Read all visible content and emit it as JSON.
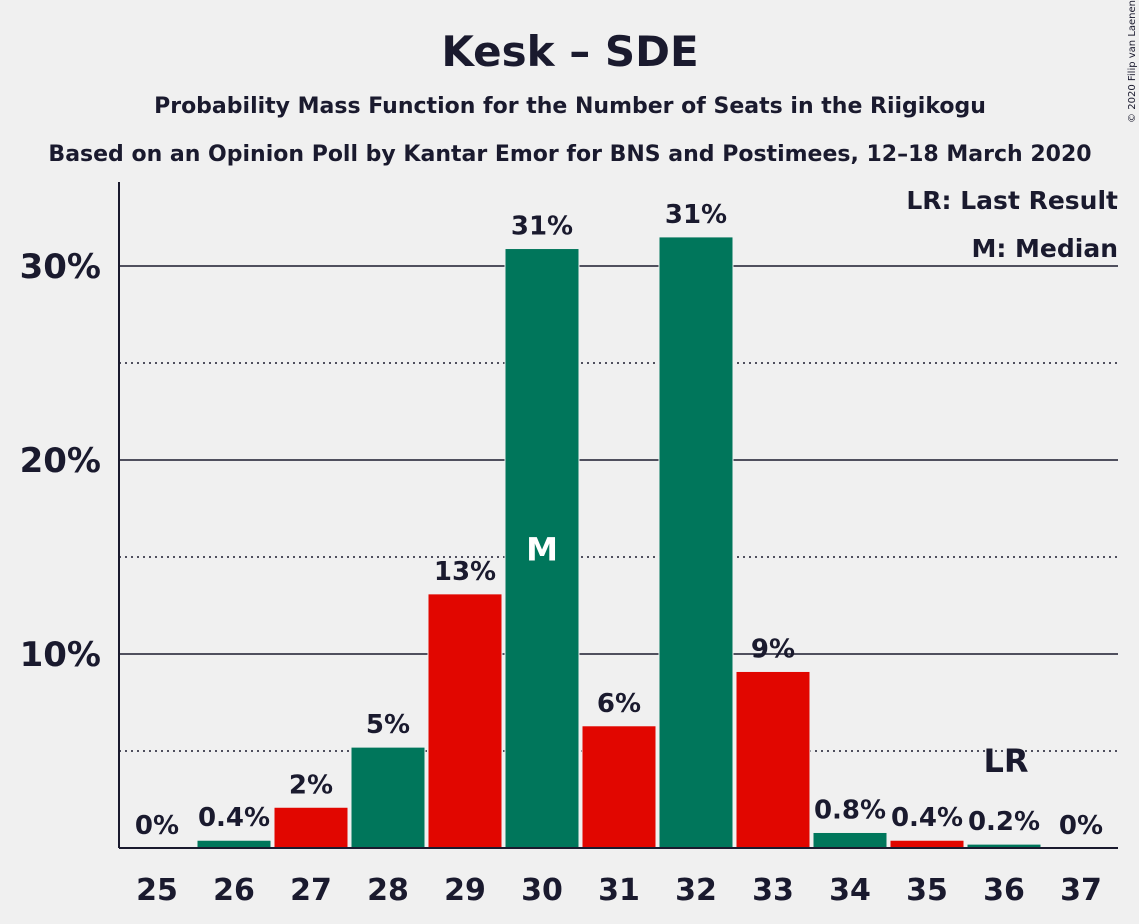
{
  "chart_data": {
    "type": "bar",
    "title": "Kesk – SDE",
    "subtitle": "Probability Mass Function for the Number of Seats in the Riigikogu",
    "subtitle2": "Based on an Opinion Poll by Kantar Emor for BNS and Postimees, 12–18 March 2020",
    "copyright": "© 2020 Filip van Laenen",
    "categories": [
      "25",
      "26",
      "27",
      "28",
      "29",
      "30",
      "31",
      "32",
      "33",
      "34",
      "35",
      "36",
      "37"
    ],
    "values": [
      0,
      0.4,
      2.1,
      5.2,
      13.1,
      30.9,
      6.3,
      31.5,
      9.1,
      0.8,
      0.4,
      0.2,
      0
    ],
    "labels": [
      "0%",
      "0.4%",
      "2%",
      "5%",
      "13%",
      "31%",
      "6%",
      "31%",
      "9%",
      "0.8%",
      "0.4%",
      "0.2%",
      "0%"
    ],
    "bar_colors": [
      "#00765b",
      "#00765b",
      "#e10600",
      "#00765b",
      "#e10600",
      "#00765b",
      "#e10600",
      "#00765b",
      "#e10600",
      "#00765b",
      "#e10600",
      "#00765b",
      "#00765b"
    ],
    "ylim": [
      0,
      34
    ],
    "yticks": [
      10,
      20,
      30
    ],
    "ytick_labels": [
      "10%",
      "20%",
      "30%"
    ],
    "minor_gridlines": [
      5,
      15,
      25
    ],
    "median_seat": "30",
    "median_marker": "M",
    "last_result_seat": "36",
    "last_result_marker": "LR",
    "legend": [
      "LR: Last Result",
      "M: Median"
    ],
    "colors": {
      "green": "#00765b",
      "red": "#e10600",
      "text": "#1a1a2e",
      "background": "#f0f0f0"
    }
  }
}
